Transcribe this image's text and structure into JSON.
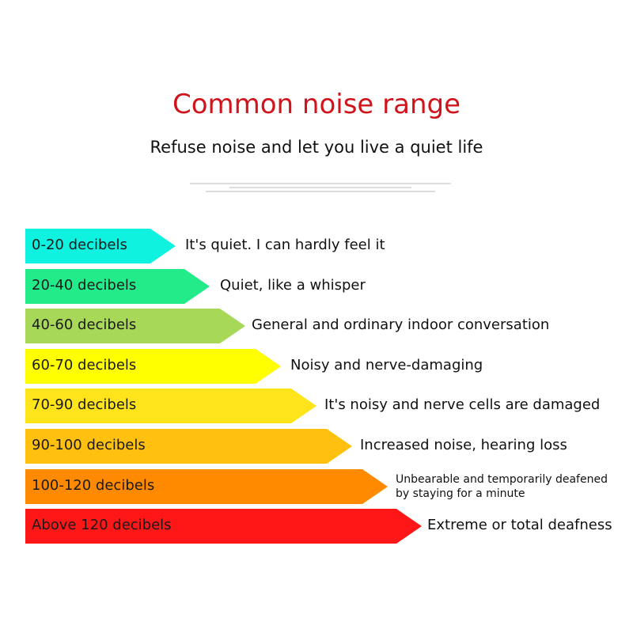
{
  "title": "Common noise range",
  "subtitle": "Refuse noise and let you live a quiet life",
  "levels": [
    {
      "range": "0-20 decibels",
      "description": "It's quiet. I can hardly feel it",
      "color": "#0ff2e0"
    },
    {
      "range": "20-40 decibels",
      "description": "Quiet, like a whisper",
      "color": "#22ec8a"
    },
    {
      "range": "40-60 decibels",
      "description": "General and ordinary indoor conversation",
      "color": "#a8d858"
    },
    {
      "range": "60-70 decibels",
      "description": "Noisy and nerve-damaging",
      "color": "#ffff00"
    },
    {
      "range": "70-90 decibels",
      "description": "It's noisy and nerve cells are damaged",
      "color": "#ffe41c"
    },
    {
      "range": "90-100 decibels",
      "description": "Increased noise, hearing loss",
      "color": "#ffc010"
    },
    {
      "range": "100-120 decibels",
      "description": "Unbearable and temporarily deafened by staying for a minute",
      "color": "#ff8a00"
    },
    {
      "range": "Above 120 decibels",
      "description": "Extreme or total deafness",
      "color": "#ff1616"
    }
  ]
}
